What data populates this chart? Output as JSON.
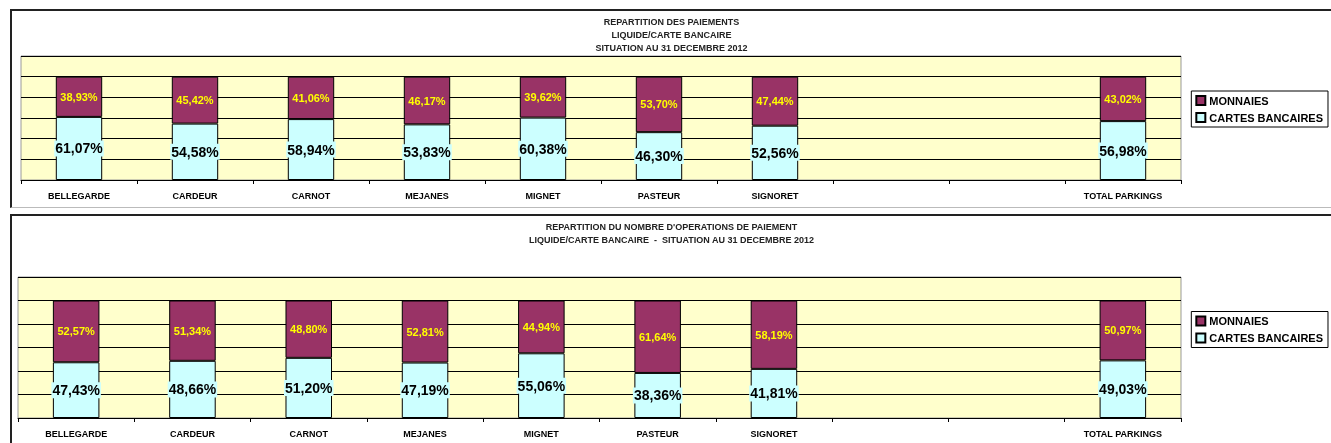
{
  "chart_data": [
    {
      "type": "bar",
      "title": "REPARTITION DES PAIEMENTS",
      "subtitle": "LIQUIDE/CARTE BANCAIRE\nSITUATION AU 31 DECEMBRE 2012",
      "categories": [
        "BELLEGARDE",
        "CARDEUR",
        "CARNOT",
        "MEJANES",
        "MIGNET",
        "PASTEUR",
        "SIGNORET",
        null,
        null,
        "TOTAL PARKINGS"
      ],
      "series": [
        {
          "name": "CARTES BANCAIRES",
          "color": "#ccffff",
          "values": [
            61.07,
            54.58,
            58.94,
            53.83,
            60.38,
            46.3,
            52.56,
            null,
            null,
            56.98
          ],
          "value_labels": [
            "61,07%",
            "54,58%",
            "58,94%",
            "53,83%",
            "60,38%",
            "46,30%",
            "52,56%",
            null,
            null,
            "56,98%"
          ]
        },
        {
          "name": "MONNAIES",
          "color": "#993366",
          "values": [
            38.93,
            45.42,
            41.06,
            46.17,
            39.62,
            53.7,
            47.44,
            null,
            null,
            43.02
          ],
          "value_labels": [
            "38,93%",
            "45,42%",
            "41,06%",
            "46,17%",
            "39,62%",
            "53,70%",
            "47,44%",
            null,
            null,
            "43,02%"
          ]
        }
      ],
      "stacked": true,
      "ylim": [
        0,
        120
      ],
      "grid": "y",
      "legend": "right",
      "tick_labels": "x"
    },
    {
      "type": "bar",
      "title": "REPARTITION DU NOMBRE D'OPERATIONS DE PAIEMENT",
      "subtitle": "LIQUIDE/CARTE BANCAIRE  -  SITUATION AU 31 DECEMBRE 2012",
      "categories": [
        "BELLEGARDE",
        "CARDEUR",
        "CARNOT",
        "MEJANES",
        "MIGNET",
        "PASTEUR",
        "SIGNORET",
        null,
        null,
        "TOTAL PARKINGS"
      ],
      "series": [
        {
          "name": "CARTES BANCAIRES",
          "color": "#ccffff",
          "values": [
            47.43,
            48.66,
            51.2,
            47.19,
            55.06,
            38.36,
            41.81,
            null,
            null,
            49.03
          ],
          "value_labels": [
            "47,43%",
            "48,66%",
            "51,20%",
            "47,19%",
            "55,06%",
            "38,36%",
            "41,81%",
            null,
            null,
            "49,03%"
          ]
        },
        {
          "name": "MONNAIES",
          "color": "#993366",
          "values": [
            52.57,
            51.34,
            48.8,
            52.81,
            44.94,
            61.64,
            58.19,
            null,
            null,
            50.97
          ],
          "value_labels": [
            "52,57%",
            "51,34%",
            "48,80%",
            "52,81%",
            "44,94%",
            "61,64%",
            "58,19%",
            null,
            null,
            "50,97%"
          ]
        }
      ],
      "stacked": true,
      "ylim": [
        0,
        120
      ],
      "grid": "y",
      "legend": "right",
      "tick_labels": "x"
    }
  ]
}
